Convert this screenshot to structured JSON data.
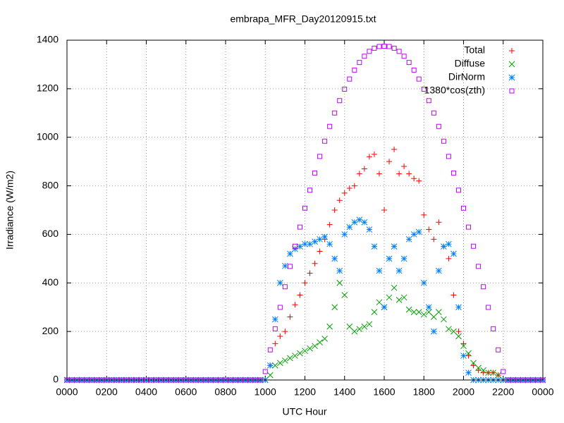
{
  "chart_data": {
    "type": "scatter",
    "title": "embrapa_MFR_Day20120915.txt",
    "x_label": "UTC Hour",
    "y_label": "Irradiance (W/m2)",
    "xlim": [
      0,
      24
    ],
    "xticks": [
      {
        "value": 0,
        "label": "0000"
      },
      {
        "value": 2,
        "label": "0200"
      },
      {
        "value": 4,
        "label": "0400"
      },
      {
        "value": 6,
        "label": "0600"
      },
      {
        "value": 8,
        "label": "0800"
      },
      {
        "value": 10,
        "label": "1000"
      },
      {
        "value": 12,
        "label": "1200"
      },
      {
        "value": 14,
        "label": "1400"
      },
      {
        "value": 16,
        "label": "1600"
      },
      {
        "value": 18,
        "label": "1800"
      },
      {
        "value": 20,
        "label": "2000"
      },
      {
        "value": 22,
        "label": "2200"
      },
      {
        "value": 24,
        "label": "0000"
      }
    ],
    "ylim": [
      0,
      1400
    ],
    "yticks": [
      0,
      200,
      400,
      600,
      800,
      1000,
      1200,
      1400
    ],
    "grid": true,
    "legend": "top-right",
    "x": [
      0,
      0.25,
      0.5,
      0.75,
      1,
      1.25,
      1.5,
      1.75,
      2,
      2.25,
      2.5,
      2.75,
      3,
      3.25,
      3.5,
      3.75,
      4,
      4.25,
      4.5,
      4.75,
      5,
      5.25,
      5.5,
      5.75,
      6,
      6.25,
      6.5,
      6.75,
      7,
      7.25,
      7.5,
      7.75,
      8,
      8.25,
      8.5,
      8.75,
      9,
      9.25,
      9.5,
      9.75,
      10,
      10.25,
      10.5,
      10.75,
      11,
      11.25,
      11.5,
      11.75,
      12,
      12.25,
      12.5,
      12.75,
      13,
      13.25,
      13.5,
      13.75,
      14,
      14.25,
      14.5,
      14.75,
      15,
      15.25,
      15.5,
      15.75,
      16,
      16.25,
      16.5,
      16.75,
      17,
      17.25,
      17.5,
      17.75,
      18,
      18.25,
      18.5,
      18.75,
      19,
      19.25,
      19.5,
      19.75,
      20,
      20.25,
      20.5,
      20.75,
      21,
      21.25,
      21.5,
      21.75,
      22,
      22.25,
      22.5,
      22.75,
      23,
      23.25,
      23.5,
      23.75,
      24
    ],
    "series": [
      {
        "name": "Total",
        "color": "#ff0000",
        "marker": "plus",
        "values": [
          0,
          0,
          0,
          0,
          0,
          0,
          0,
          0,
          0,
          0,
          0,
          0,
          0,
          0,
          0,
          0,
          0,
          0,
          0,
          0,
          0,
          0,
          0,
          0,
          0,
          0,
          0,
          0,
          0,
          0,
          0,
          0,
          0,
          0,
          0,
          0,
          0,
          0,
          0,
          0,
          0,
          60,
          150,
          180,
          200,
          260,
          310,
          350,
          400,
          440,
          480,
          530,
          580,
          640,
          700,
          740,
          770,
          790,
          800,
          850,
          870,
          920,
          930,
          850,
          700,
          900,
          950,
          850,
          880,
          850,
          830,
          820,
          680,
          620,
          580,
          650,
          550,
          500,
          350,
          200,
          150,
          100,
          60,
          40,
          30,
          30,
          30,
          20,
          0,
          0,
          0,
          0,
          0,
          0,
          0,
          0,
          0
        ]
      },
      {
        "name": "Diffuse",
        "color": "#00a000",
        "marker": "cross",
        "values": [
          0,
          0,
          0,
          0,
          0,
          0,
          0,
          0,
          0,
          0,
          0,
          0,
          0,
          0,
          0,
          0,
          0,
          0,
          0,
          0,
          0,
          0,
          0,
          0,
          0,
          0,
          0,
          0,
          0,
          0,
          0,
          0,
          0,
          0,
          0,
          0,
          0,
          0,
          0,
          0,
          0,
          20,
          60,
          70,
          80,
          90,
          100,
          110,
          120,
          130,
          140,
          155,
          170,
          220,
          300,
          400,
          350,
          220,
          200,
          210,
          220,
          230,
          280,
          320,
          300,
          340,
          380,
          330,
          340,
          290,
          280,
          280,
          270,
          280,
          260,
          280,
          250,
          210,
          200,
          180,
          140,
          110,
          70,
          50,
          40,
          30,
          30,
          20,
          0,
          0,
          0,
          0,
          0,
          0,
          0,
          0,
          0
        ]
      },
      {
        "name": "DirNorm",
        "color": "#0080ff",
        "marker": "star",
        "values": [
          0,
          0,
          0,
          0,
          0,
          0,
          0,
          0,
          0,
          0,
          0,
          0,
          0,
          0,
          0,
          0,
          0,
          0,
          0,
          0,
          0,
          0,
          0,
          0,
          0,
          0,
          0,
          0,
          0,
          0,
          0,
          0,
          0,
          0,
          0,
          0,
          0,
          0,
          0,
          0,
          0,
          60,
          250,
          400,
          470,
          520,
          540,
          550,
          560,
          560,
          570,
          580,
          590,
          560,
          500,
          450,
          600,
          630,
          650,
          660,
          650,
          620,
          550,
          450,
          300,
          500,
          550,
          450,
          500,
          580,
          600,
          610,
          400,
          300,
          200,
          450,
          550,
          560,
          520,
          300,
          100,
          30,
          0,
          0,
          0,
          0,
          0,
          0,
          0,
          0,
          0,
          0,
          0,
          0,
          0,
          0,
          0
        ]
      },
      {
        "name": "1380*cos(zth)",
        "color": "#c000ff",
        "marker": "square",
        "values": [
          0,
          0,
          0,
          0,
          0,
          0,
          0,
          0,
          0,
          0,
          0,
          0,
          0,
          0,
          0,
          0,
          0,
          0,
          0,
          0,
          0,
          0,
          0,
          0,
          0,
          0,
          0,
          0,
          0,
          0,
          0,
          0,
          0,
          0,
          0,
          0,
          0,
          0,
          0,
          0,
          35,
          124,
          211,
          299,
          384,
          468,
          551,
          630,
          708,
          782,
          853,
          921,
          984,
          1045,
          1100,
          1151,
          1198,
          1240,
          1277,
          1308,
          1334,
          1354,
          1367,
          1374,
          1375,
          1374,
          1367,
          1354,
          1334,
          1308,
          1277,
          1240,
          1198,
          1151,
          1100,
          1045,
          984,
          921,
          853,
          782,
          708,
          630,
          551,
          468,
          384,
          299,
          211,
          124,
          35,
          0,
          0,
          0,
          0,
          0,
          0,
          0,
          0
        ]
      }
    ]
  }
}
